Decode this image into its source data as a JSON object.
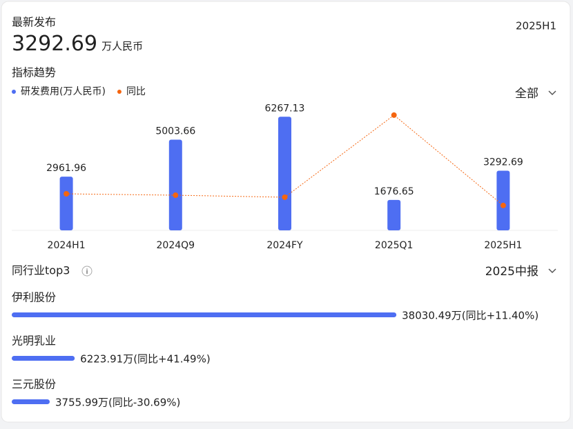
{
  "header": {
    "label": "最新发布",
    "value": 3292.69,
    "unit": "万人民币",
    "period": "2025H1"
  },
  "section_title": "指标趋势",
  "filter": "全部",
  "chart_data": {
    "type": "bar",
    "categories": [
      "2024H1",
      "2024Q9",
      "2024FY",
      "2025Q1",
      "2025H1"
    ],
    "series": [
      {
        "name": "研发费用(万人民币)",
        "color": "#4e6ef2",
        "values": [
          2961.96,
          5003.66,
          6267.13,
          1676.65,
          3292.69
        ]
      },
      {
        "name": "同比",
        "color": "#f5650f",
        "type": "line",
        "axis": "y2",
        "values": [
          28.8,
          27.7,
          26.1,
          90.8,
          19.6
        ]
      }
    ],
    "ylim": [
      0,
      7000
    ],
    "y2lim": [
      0,
      100
    ]
  },
  "peers": {
    "title": "同行业top3",
    "period": "2025中报",
    "type": "bar",
    "color": "#4e6ef2",
    "categories": [
      "伊利股份",
      "光明乳业",
      "三元股份"
    ],
    "values": [
      38030.49,
      6223.91,
      3755.99
    ],
    "value_labels": [
      "38030.49万(同比+11.40%)",
      "6223.91万(同比+41.49%)",
      "3755.99万(同比-30.69%)"
    ],
    "xlim": [
      0,
      40000
    ]
  }
}
